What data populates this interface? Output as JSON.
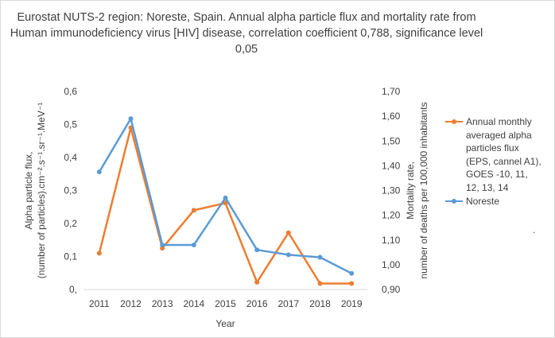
{
  "title": "Eurostat NUTS-2 region: Noreste, Spain. Annual alpha particle flux and mortality rate from Human immunodeficiency virus [HIV] disease, correlation coefficient 0,788, significance level 0,05",
  "stray_mark": ".",
  "chart_data": {
    "type": "line",
    "title": "Eurostat NUTS-2 region: Noreste, Spain. Annual alpha particle flux and mortality rate from Human immunodeficiency virus [HIV] disease, correlation coefficient 0,788, significance level 0,05",
    "categories": [
      "2011",
      "2012",
      "2013",
      "2014",
      "2015",
      "2016",
      "2017",
      "2018",
      "2019"
    ],
    "xlabel": "Year",
    "y_left": {
      "label_line1": "Alpha particle flux,",
      "label_line2": "(number of particles).cm⁻².s⁻¹.sr⁻¹.MeV⁻¹",
      "ylim": [
        0,
        0.6
      ],
      "ticks": [
        0,
        0.1,
        0.2,
        0.3,
        0.4,
        0.5,
        0.6
      ],
      "tick_labels": [
        "0,",
        "0,1",
        "0,2",
        "0,3",
        "0,4",
        "0,5",
        "0,6"
      ]
    },
    "y_right": {
      "label_line1": "Mortality rate,",
      "label_line2": "number of deaths per 100,000 inhabitants",
      "ylim": [
        0.9,
        1.7
      ],
      "ticks": [
        0.9,
        1.0,
        1.1,
        1.2,
        1.3,
        1.4,
        1.5,
        1.6,
        1.7
      ],
      "tick_labels": [
        "0,90",
        "1,00",
        "1,10",
        "1,20",
        "1,30",
        "1,40",
        "1,50",
        "1,60",
        "1,70"
      ]
    },
    "legend_position": "right",
    "grid": false,
    "series": [
      {
        "name": "Annual monthly averaged alpha particles flux (EPS, cannel A1), GOES -10, 11, 12, 13, 14",
        "legend_lines": [
          "Annual monthly",
          "averaged alpha",
          "particles flux",
          "(EPS, cannel A1),",
          "GOES -10, 11,",
          "12, 13, 14"
        ],
        "axis": "left",
        "color": "#ed7d31",
        "values": [
          0.11,
          0.49,
          0.125,
          0.24,
          0.262,
          0.022,
          0.172,
          0.018,
          0.018
        ]
      },
      {
        "name": "Noreste",
        "legend_lines": [
          "Noreste"
        ],
        "axis": "right",
        "color": "#5b9bd5",
        "values": [
          1.375,
          1.59,
          1.08,
          1.08,
          1.27,
          1.06,
          1.04,
          1.03,
          0.965
        ]
      }
    ]
  }
}
